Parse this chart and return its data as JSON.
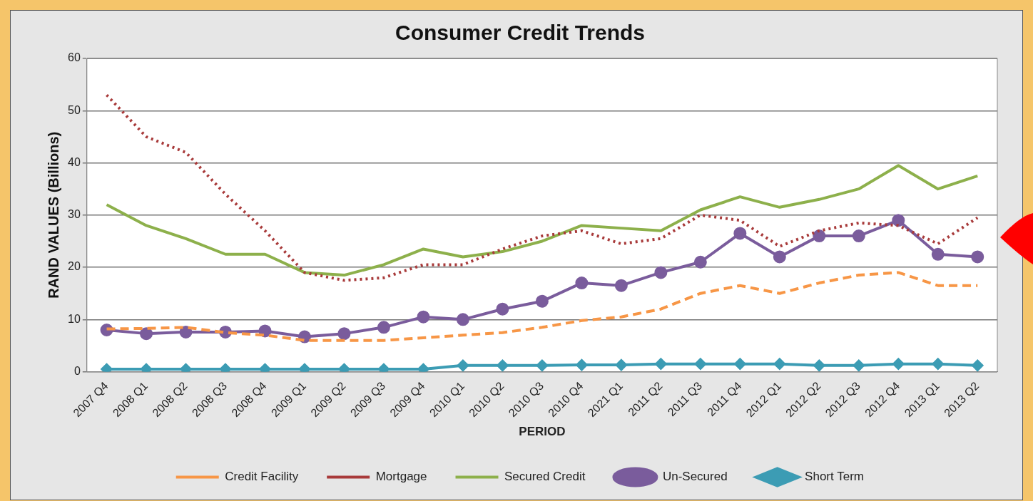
{
  "chart_data": {
    "type": "line",
    "title": "Consumer Credit Trends",
    "xlabel": "PERIOD",
    "ylabel": "RAND VALUES (Billions)",
    "categories": [
      "2007 Q4",
      "2008 Q1",
      "2008 Q2",
      "2008 Q3",
      "2008 Q4",
      "2009 Q1",
      "2009 Q2",
      "2009 Q3",
      "2009 Q4",
      "2010 Q1",
      "2010 Q2",
      "2010 Q3",
      "2010 Q4",
      "2021 Q1",
      "2011 Q2",
      "2011 Q3",
      "2011 Q4",
      "2012 Q1",
      "2012 Q2",
      "2012 Q3",
      "2012 Q4",
      "2013 Q1",
      "2013 Q2"
    ],
    "series": [
      {
        "name": "Credit Facility",
        "color": "#f79646",
        "line_style": "dashed",
        "marker": "none",
        "values": [
          8.2,
          8.3,
          8.5,
          7.5,
          7,
          6,
          6,
          6,
          6.5,
          7,
          7.5,
          8.5,
          9.8,
          10.5,
          12,
          15,
          16.5,
          15,
          17,
          18.5,
          19,
          16.5,
          16.5
        ]
      },
      {
        "name": "Mortgage",
        "color": "#a83a3a",
        "line_style": "dotted",
        "marker": "none",
        "values": [
          53,
          45,
          42,
          34,
          27,
          19,
          17.5,
          18,
          20.5,
          20.5,
          23.5,
          26,
          27,
          24.5,
          25.5,
          30,
          29,
          24,
          27,
          28.5,
          28,
          24.5,
          29.5
        ]
      },
      {
        "name": "Secured Credit",
        "color": "#8db04b",
        "line_style": "solid",
        "marker": "none",
        "values": [
          32,
          28,
          25.5,
          22.5,
          22.5,
          19,
          18.5,
          20.5,
          23.5,
          22,
          23,
          25,
          28,
          27.5,
          27,
          31,
          33.5,
          31.5,
          33,
          35,
          39.5,
          35,
          37.5
        ]
      },
      {
        "name": "Un-Secured",
        "color": "#7a5c9c",
        "line_style": "solid",
        "marker": "circle",
        "values": [
          8,
          7.3,
          7.6,
          7.6,
          7.8,
          6.7,
          7.3,
          8.5,
          10.5,
          10,
          12,
          13.5,
          17,
          16.5,
          19,
          21,
          26.5,
          22,
          26,
          26,
          29,
          22.5,
          22
        ]
      },
      {
        "name": "Short Term",
        "color": "#3c9cb4",
        "line_style": "solid",
        "marker": "diamond",
        "values": [
          0.5,
          0.5,
          0.5,
          0.5,
          0.5,
          0.5,
          0.5,
          0.5,
          0.5,
          1.2,
          1.2,
          1.2,
          1.3,
          1.3,
          1.5,
          1.5,
          1.5,
          1.5,
          1.2,
          1.2,
          1.5,
          1.5,
          1.2
        ]
      }
    ],
    "ylim": [
      0,
      60
    ],
    "yticks": [
      0,
      10,
      20,
      30,
      40,
      50,
      60
    ],
    "grid": "y",
    "legend": "bottom"
  }
}
